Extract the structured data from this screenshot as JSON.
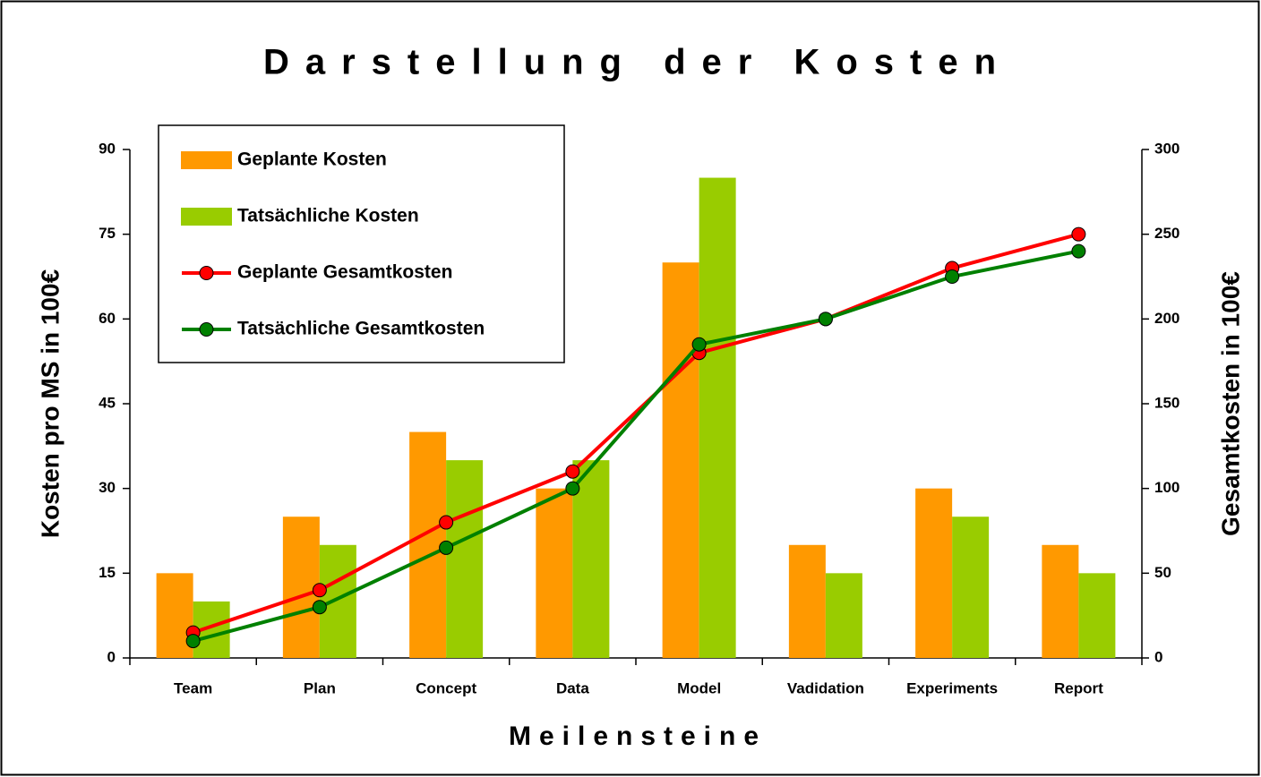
{
  "chart_data": {
    "type": "bar",
    "title": "Darstellung der Kosten",
    "xlabel": "Meilensteine",
    "ylabel": "Kosten pro MS in 100€",
    "y2label": "Gesamtkosten in 100€",
    "categories": [
      "Team",
      "Plan",
      "Concept",
      "Data",
      "Model",
      "Vadidation",
      "Experiments",
      "Report"
    ],
    "series": [
      {
        "name": "Geplante Kosten",
        "type": "bar",
        "color": "#ff9900",
        "values": [
          15,
          25,
          40,
          30,
          70,
          20,
          30,
          20
        ]
      },
      {
        "name": "Tatsächliche Kosten",
        "type": "bar",
        "color": "#99cc00",
        "values": [
          10,
          20,
          35,
          35,
          85,
          15,
          25,
          15
        ]
      },
      {
        "name": "Geplante Gesamtkosten",
        "type": "line",
        "axis": "y2",
        "color": "#ff0000",
        "values": [
          15,
          40,
          80,
          110,
          180,
          200,
          230,
          250
        ]
      },
      {
        "name": "Tatsächliche Gesamtkosten",
        "type": "line",
        "axis": "y2",
        "color": "#008000",
        "values": [
          10,
          30,
          65,
          100,
          185,
          200,
          225,
          240
        ]
      }
    ],
    "ylim": [
      0,
      90
    ],
    "yticks": [
      0,
      15,
      30,
      45,
      60,
      75,
      90
    ],
    "y2lim": [
      0,
      300
    ],
    "y2ticks": [
      0,
      50,
      100,
      150,
      200,
      250,
      300
    ],
    "legend": "upper left",
    "grid": false
  }
}
